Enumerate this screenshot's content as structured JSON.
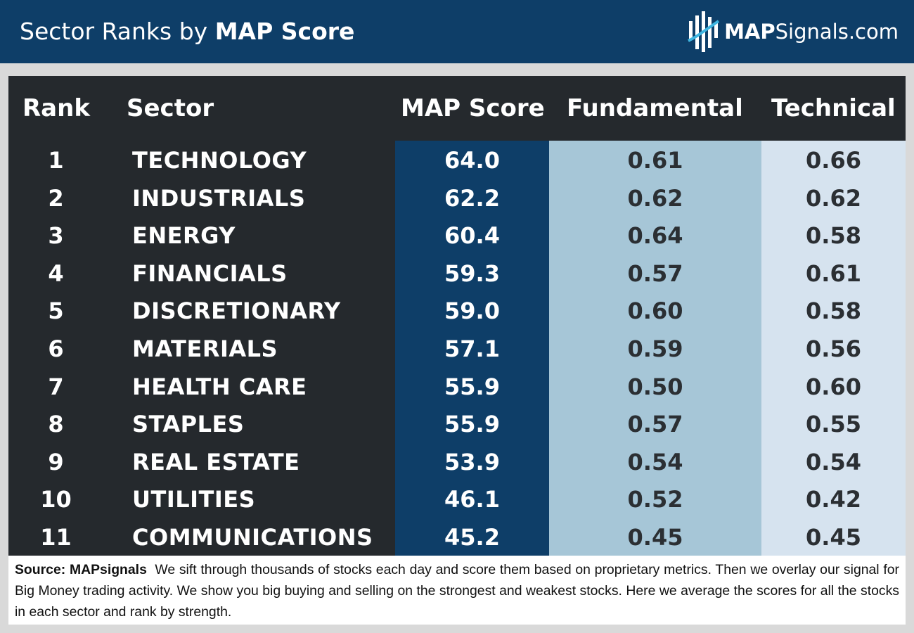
{
  "header": {
    "title_regular": "Sector Ranks by ",
    "title_bold": "MAP Score",
    "logo_bold": "MAP",
    "logo_regular": "Signals.com",
    "logo_icon": "mapsignals-logo-icon"
  },
  "colors": {
    "header_bg": "#0e3e68",
    "table_bg": "#25292d",
    "map_col": "#0e3e68",
    "fundamental_col": "#a6c6d7",
    "technical_col": "#d6e3ef"
  },
  "chart_data": {
    "type": "table",
    "columns": [
      "Rank",
      "Sector",
      "MAP Score",
      "Fundamental",
      "Technical"
    ],
    "rows": [
      {
        "rank": "1",
        "sector": "TECHNOLOGY",
        "map": "64.0",
        "fund": "0.61",
        "tech": "0.66"
      },
      {
        "rank": "2",
        "sector": "INDUSTRIALS",
        "map": "62.2",
        "fund": "0.62",
        "tech": "0.62"
      },
      {
        "rank": "3",
        "sector": "ENERGY",
        "map": "60.4",
        "fund": "0.64",
        "tech": "0.58"
      },
      {
        "rank": "4",
        "sector": "FINANCIALS",
        "map": "59.3",
        "fund": "0.57",
        "tech": "0.61"
      },
      {
        "rank": "5",
        "sector": "DISCRETIONARY",
        "map": "59.0",
        "fund": "0.60",
        "tech": "0.58"
      },
      {
        "rank": "6",
        "sector": "MATERIALS",
        "map": "57.1",
        "fund": "0.59",
        "tech": "0.56"
      },
      {
        "rank": "7",
        "sector": "HEALTH CARE",
        "map": "55.9",
        "fund": "0.50",
        "tech": "0.60"
      },
      {
        "rank": "8",
        "sector": "STAPLES",
        "map": "55.9",
        "fund": "0.57",
        "tech": "0.55"
      },
      {
        "rank": "9",
        "sector": "REAL ESTATE",
        "map": "53.9",
        "fund": "0.54",
        "tech": "0.54"
      },
      {
        "rank": "10",
        "sector": "UTILITIES",
        "map": "46.1",
        "fund": "0.52",
        "tech": "0.42"
      },
      {
        "rank": "11",
        "sector": "COMMUNICATIONS",
        "map": "45.2",
        "fund": "0.45",
        "tech": "0.45"
      }
    ]
  },
  "footer": {
    "source_label": "Source:  MAPsignals",
    "text": "We sift through thousands of stocks each day and score them based on proprietary metrics. Then we overlay our signal for Big Money trading activity. We show you big buying and selling on the strongest and weakest stocks. Here we average the scores for all the stocks in each sector and rank by strength."
  }
}
